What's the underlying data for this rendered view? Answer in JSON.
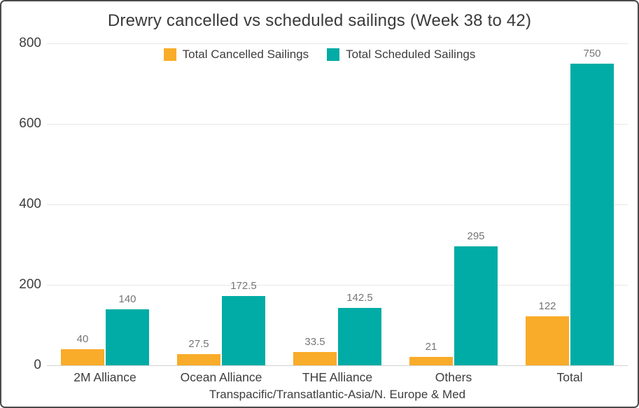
{
  "chart_data": {
    "type": "bar",
    "title": "Drewry cancelled vs scheduled sailings (Week 38 to 42)",
    "categories": [
      "2M Alliance",
      "Ocean Alliance",
      "THE Alliance",
      "Others",
      "Total"
    ],
    "series": [
      {
        "name": "Total Cancelled Sailings",
        "color": "#F9AC29",
        "values": [
          40,
          27.5,
          33.5,
          21,
          122
        ]
      },
      {
        "name": "Total Scheduled Sailings",
        "color": "#00ACA5",
        "values": [
          140,
          172.5,
          142.5,
          295,
          750
        ]
      }
    ],
    "xlabel": "Transpacific/Transatlantic-Asia/N. Europe & Med",
    "ylabel": "",
    "ylim": [
      0,
      800
    ],
    "yticks": [
      0,
      200,
      400,
      600,
      800
    ],
    "grid": true,
    "legend_position": "top-center",
    "value_labels": true
  },
  "style": {
    "title_color": "#3a3a3a",
    "tick_label_color": "#3d3d3d",
    "value_label_color": "#757575",
    "gridline_color": "#e6e6e6",
    "zero_line_color": "#d2d2d2",
    "frame_border_color": "#4a4a4a",
    "background": "#ffffff"
  }
}
